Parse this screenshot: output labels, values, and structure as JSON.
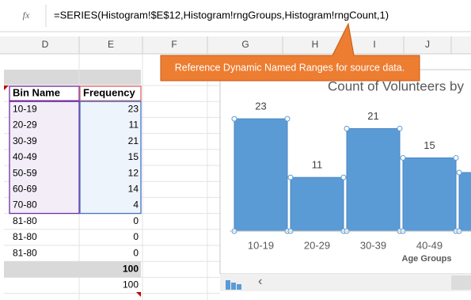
{
  "formula_bar": {
    "icon": "fx",
    "formula": "=SERIES(Histogram!$E$12,Histogram!rngGroups,Histogram!rngCount,1)"
  },
  "column_headers": [
    "D",
    "E",
    "F",
    "G",
    "H",
    "I",
    "J"
  ],
  "callout": "Reference Dynamic Named Ranges for source data.",
  "table": {
    "header": [
      "Bin Name",
      "Frequency"
    ],
    "rows": [
      [
        "10-19",
        23
      ],
      [
        "20-29",
        11
      ],
      [
        "30-39",
        21
      ],
      [
        "40-49",
        15
      ],
      [
        "50-59",
        12
      ],
      [
        "60-69",
        14
      ],
      [
        "70-80",
        4
      ],
      [
        "81-80",
        0
      ],
      [
        "81-80",
        0
      ],
      [
        "81-80",
        0
      ]
    ],
    "total": 100,
    "below_total": 100
  },
  "chart_data": {
    "type": "bar",
    "title": "Count of Volunteers by",
    "categories": [
      "10-19",
      "20-29",
      "30-39",
      "40-49",
      null
    ],
    "values": [
      23,
      11,
      21,
      15,
      12
    ],
    "x_label": "Age Groups",
    "color": "#5b9bd5"
  }
}
